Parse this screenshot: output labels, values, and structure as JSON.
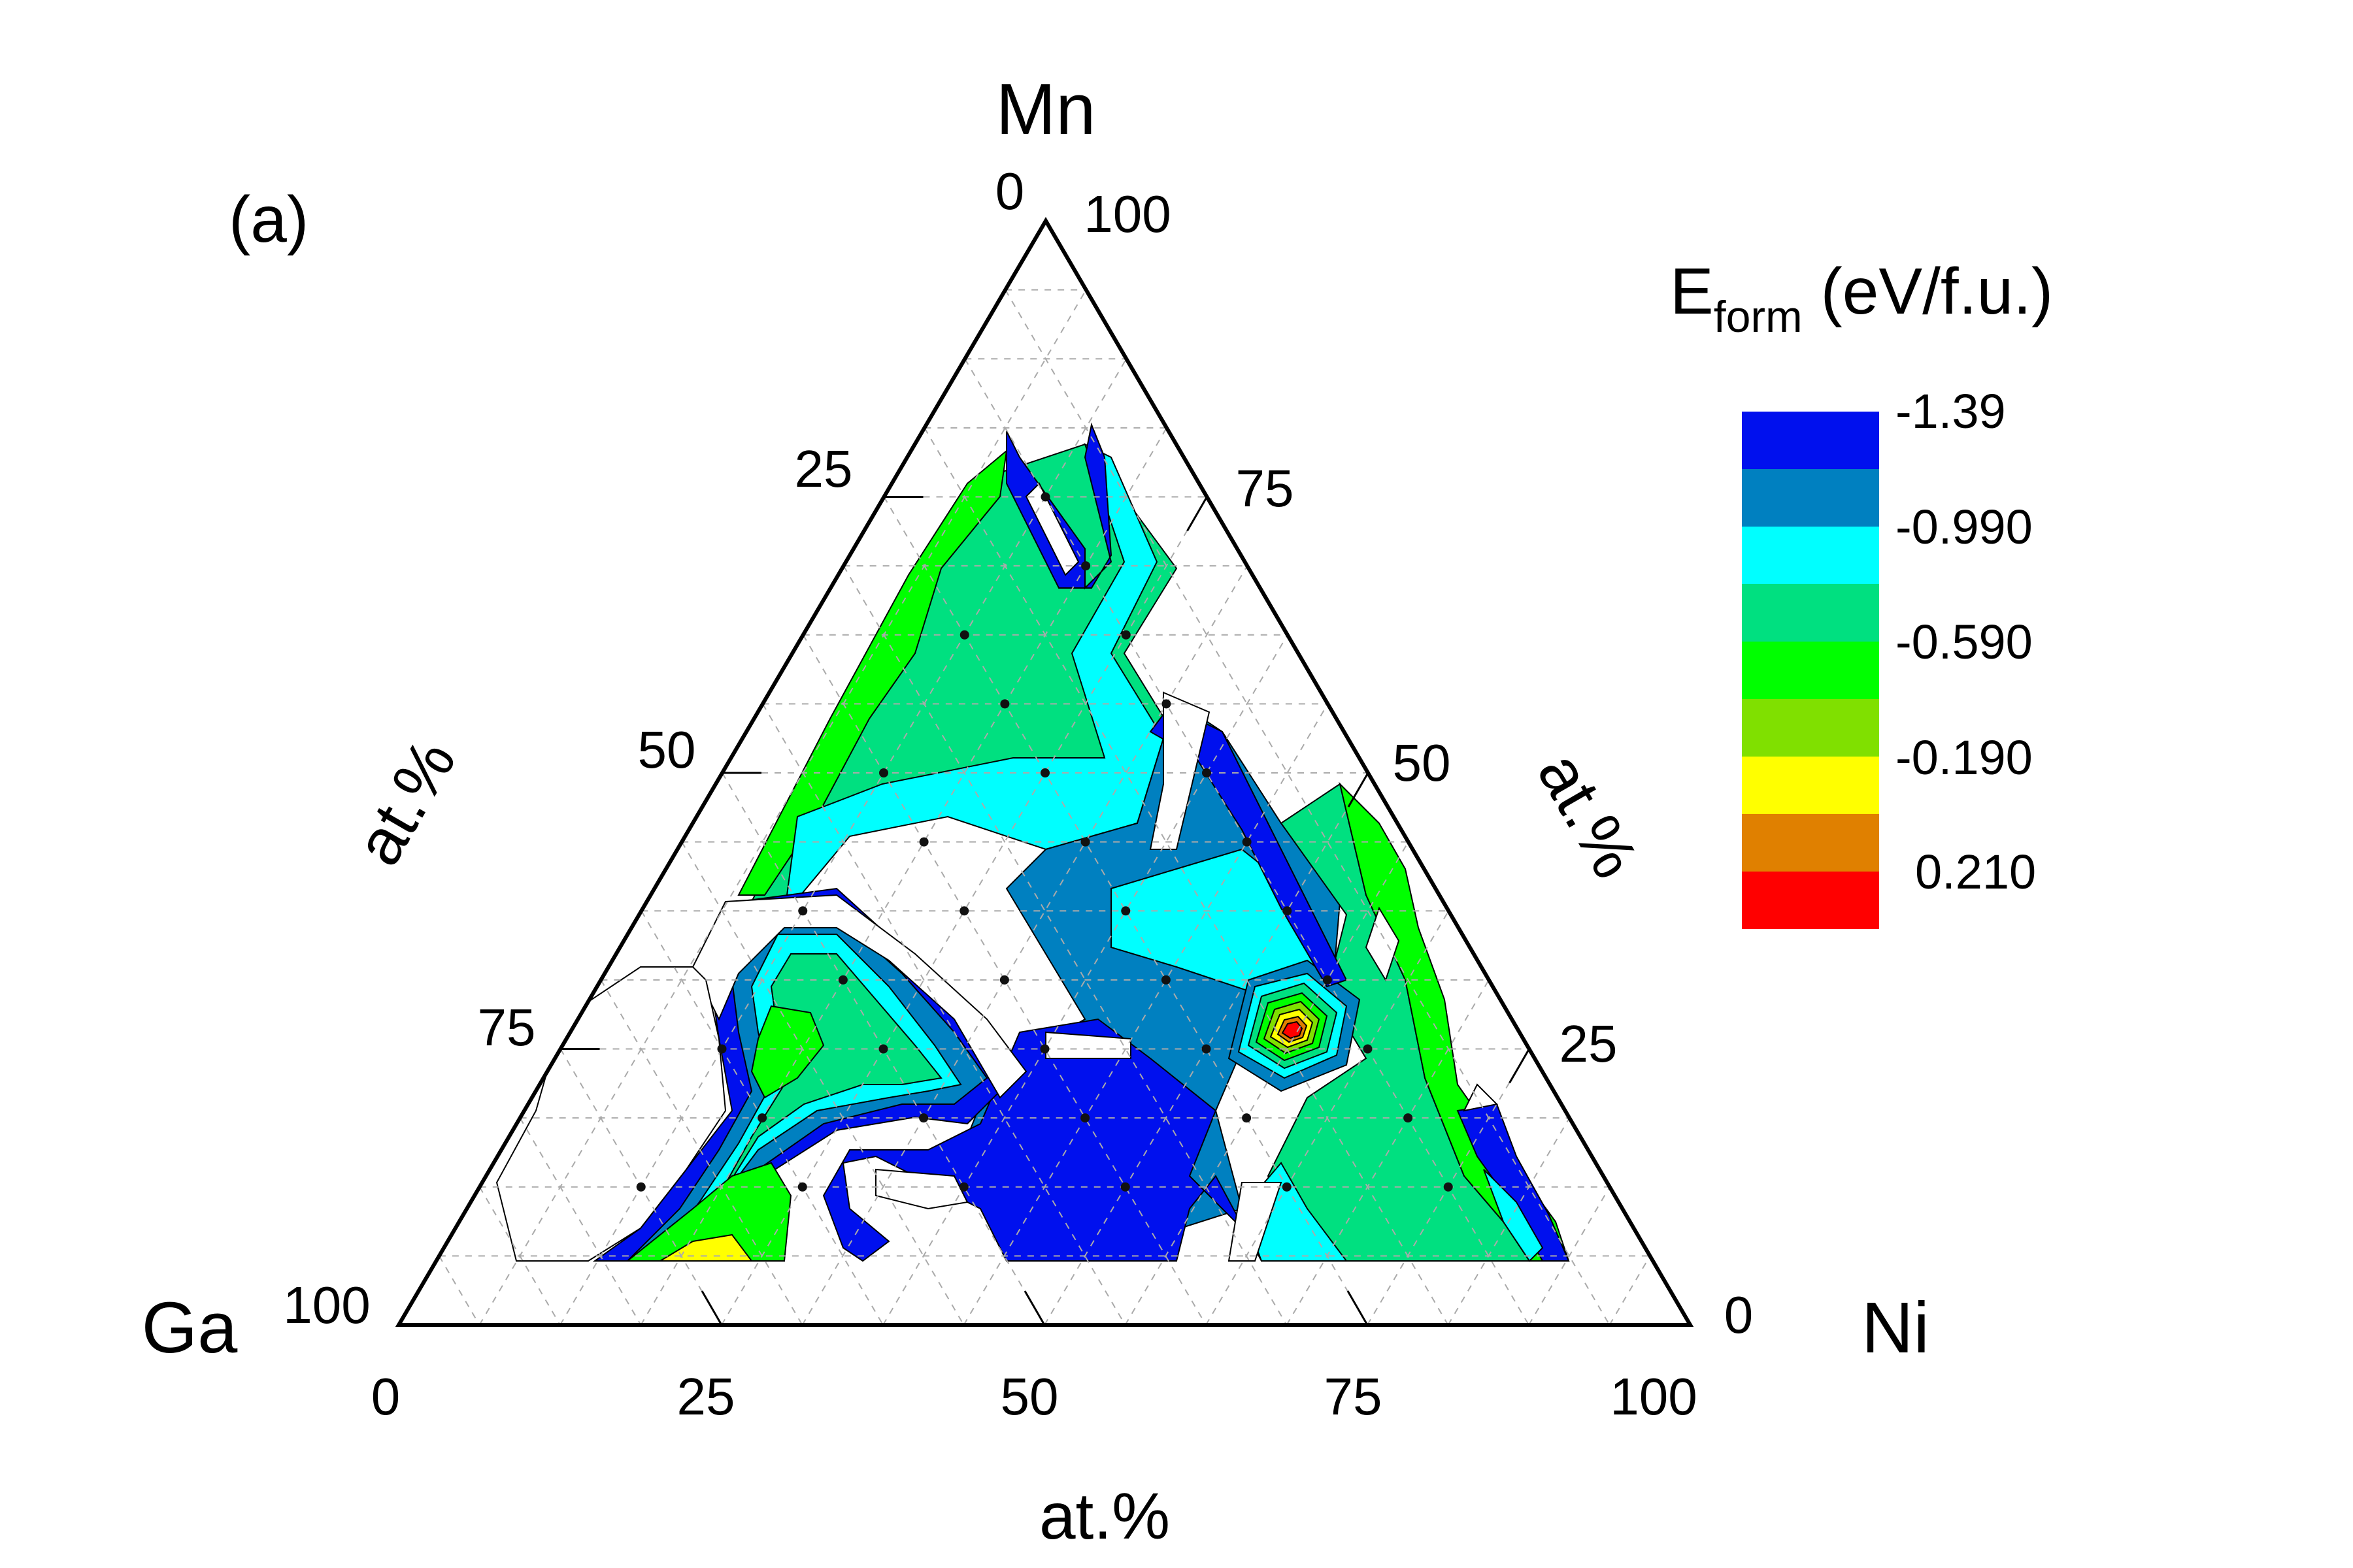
{
  "chart_data": {
    "type": "ternary-contour",
    "panel_label": "(a)",
    "vertices": {
      "top": "Mn",
      "left": "Ga",
      "right": "Ni"
    },
    "axis_labels": {
      "bottom": "at.%",
      "left": "at.%",
      "right": "at.%"
    },
    "ticks": {
      "bottom": [
        "0",
        "25",
        "50",
        "75",
        "100"
      ],
      "left": [
        "0",
        "25",
        "50",
        "75",
        "100"
      ],
      "right": [
        "100",
        "75",
        "50",
        "25",
        "0"
      ]
    },
    "colorbar": {
      "title": "E",
      "title_sub": "form",
      "title_unit": " (eV/f.u.)",
      "levels": [
        "-1.39",
        "-0.990",
        "-0.590",
        "-0.190",
        "0.210"
      ],
      "colors": [
        "#0010ee",
        "#0080c0",
        "#00ffff",
        "#00e080",
        "#00ff00",
        "#80e000",
        "#ffff00",
        "#e08000",
        "#ff0000"
      ]
    },
    "composition_grid_spacing_at_pct": 6.25,
    "regions": [
      {
        "name": "upper-mn-tip",
        "color": "#00e080"
      },
      {
        "name": "center",
        "color": "#0080c0"
      },
      {
        "name": "bottom-center-low",
        "color": "#0010ee"
      },
      {
        "name": "ga-rich-lobe",
        "color": "#00e080"
      },
      {
        "name": "ni-side",
        "color": "#00e080"
      },
      {
        "name": "hotspot",
        "color": "#ff0000"
      }
    ],
    "grid": true
  }
}
